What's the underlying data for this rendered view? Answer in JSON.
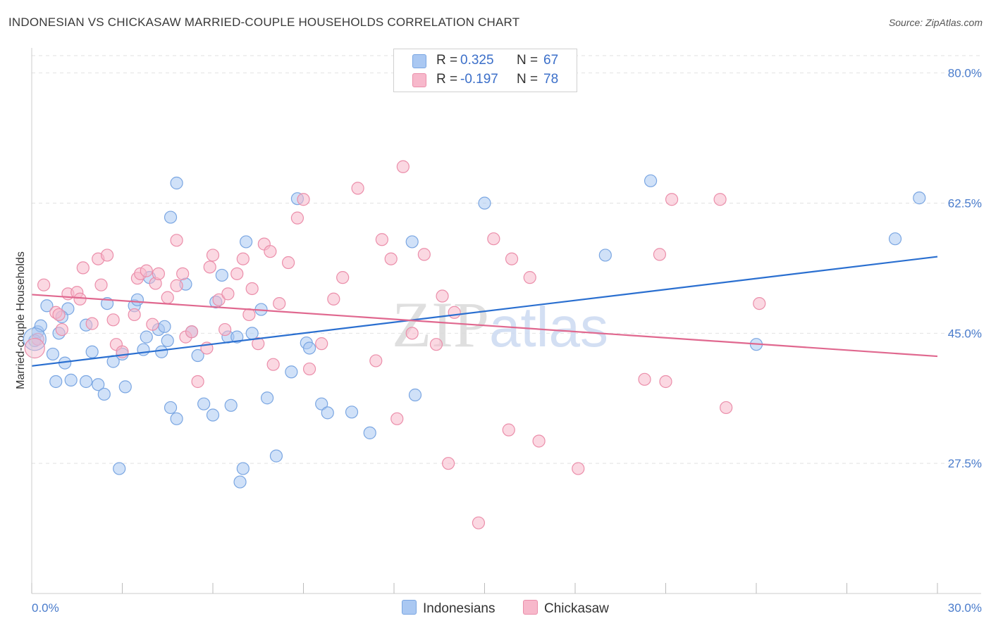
{
  "header": {
    "title": "INDONESIAN VS CHICKASAW MARRIED-COUPLE HOUSEHOLDS CORRELATION CHART",
    "source": "Source: ZipAtlas.com"
  },
  "watermark": {
    "part1": "ZIP",
    "part2": "atlas"
  },
  "legend": {
    "rows": [
      {
        "r_label": "R =",
        "r_value": "0.325",
        "n_label": "N =",
        "n_value": "67",
        "color": "#aac8f2"
      },
      {
        "r_label": "R =",
        "r_value": "-0.197",
        "n_label": "N =",
        "n_value": "78",
        "color": "#f7b8cb"
      }
    ],
    "bottom": [
      "Indonesians",
      "Chickasaw"
    ]
  },
  "colors": {
    "blue_fill": "#aac8f2",
    "blue_stroke": "#7aa6e2",
    "blue_line": "#2a6fd0",
    "pink_fill": "#f7b8cb",
    "pink_stroke": "#eb8eaa",
    "pink_line": "#e0688f",
    "grid": "#e2e2e2",
    "axis_text": "#4a7ccc"
  },
  "chart_data": {
    "type": "scatter",
    "title": "INDONESIAN VS CHICKASAW MARRIED-COUPLE HOUSEHOLDS CORRELATION CHART",
    "xlabel": "",
    "ylabel": "Married-couple Households",
    "xlim": [
      0,
      30
    ],
    "ylim": [
      10,
      83
    ],
    "x_tick_labels": [
      "0.0%",
      "30.0%"
    ],
    "y_ticks": [
      27.5,
      45.0,
      62.5,
      80.0
    ],
    "y_tick_labels": [
      "27.5%",
      "45.0%",
      "62.5%",
      "80.0%"
    ],
    "grid": true,
    "series": [
      {
        "name": "Indonesians",
        "points": [
          [
            0.2,
            45.2
          ],
          [
            0.5,
            48.7
          ],
          [
            1.2,
            48.3
          ],
          [
            0.8,
            38.5
          ],
          [
            1.3,
            38.7
          ],
          [
            1.8,
            38.5
          ],
          [
            2.2,
            38.1
          ],
          [
            2.4,
            36.8
          ],
          [
            1.0,
            47.2
          ],
          [
            1.1,
            41.0
          ],
          [
            0.7,
            42.2
          ],
          [
            0.9,
            45.0
          ],
          [
            1.8,
            46.1
          ],
          [
            2.0,
            42.5
          ],
          [
            2.5,
            49.0
          ],
          [
            2.7,
            41.2
          ],
          [
            3.0,
            42.2
          ],
          [
            3.1,
            37.8
          ],
          [
            3.4,
            48.7
          ],
          [
            3.5,
            49.5
          ],
          [
            3.7,
            42.8
          ],
          [
            3.8,
            44.5
          ],
          [
            3.9,
            52.5
          ],
          [
            4.2,
            45.5
          ],
          [
            4.4,
            45.9
          ],
          [
            4.5,
            44.0
          ],
          [
            4.3,
            42.5
          ],
          [
            4.8,
            33.5
          ],
          [
            4.6,
            35.0
          ],
          [
            2.9,
            26.8
          ],
          [
            5.1,
            51.6
          ],
          [
            4.6,
            60.6
          ],
          [
            4.8,
            65.2
          ],
          [
            5.3,
            45.2
          ],
          [
            5.5,
            42.0
          ],
          [
            5.7,
            35.5
          ],
          [
            6.0,
            34.0
          ],
          [
            6.1,
            49.2
          ],
          [
            6.6,
            35.3
          ],
          [
            6.3,
            52.8
          ],
          [
            6.5,
            44.5
          ],
          [
            6.8,
            44.5
          ],
          [
            7.1,
            57.3
          ],
          [
            7.0,
            26.8
          ],
          [
            6.9,
            25.0
          ],
          [
            7.3,
            45.0
          ],
          [
            7.6,
            48.2
          ],
          [
            7.8,
            36.3
          ],
          [
            8.1,
            28.5
          ],
          [
            8.6,
            39.8
          ],
          [
            8.8,
            63.1
          ],
          [
            9.1,
            43.7
          ],
          [
            9.2,
            43.0
          ],
          [
            9.6,
            35.5
          ],
          [
            9.8,
            34.3
          ],
          [
            10.6,
            34.4
          ],
          [
            11.2,
            31.6
          ],
          [
            12.7,
            36.7
          ],
          [
            12.6,
            57.3
          ],
          [
            15.0,
            62.5
          ],
          [
            19.0,
            55.5
          ],
          [
            20.5,
            65.5
          ],
          [
            24.0,
            43.5
          ],
          [
            28.6,
            57.7
          ],
          [
            29.4,
            63.2
          ],
          [
            0.1,
            44.0
          ],
          [
            0.3,
            46.0
          ]
        ]
      },
      {
        "name": "Chickasaw",
        "points": [
          [
            0.2,
            44.2
          ],
          [
            0.4,
            51.5
          ],
          [
            0.8,
            47.8
          ],
          [
            0.9,
            47.5
          ],
          [
            1.0,
            45.5
          ],
          [
            1.2,
            50.3
          ],
          [
            1.5,
            50.5
          ],
          [
            1.6,
            49.6
          ],
          [
            1.7,
            53.8
          ],
          [
            2.0,
            46.3
          ],
          [
            2.2,
            55.0
          ],
          [
            2.3,
            51.5
          ],
          [
            2.5,
            55.5
          ],
          [
            2.7,
            46.8
          ],
          [
            2.8,
            43.5
          ],
          [
            3.0,
            42.5
          ],
          [
            3.4,
            47.5
          ],
          [
            3.5,
            52.4
          ],
          [
            3.6,
            53.0
          ],
          [
            3.8,
            53.4
          ],
          [
            4.0,
            46.2
          ],
          [
            4.1,
            51.7
          ],
          [
            4.2,
            53.0
          ],
          [
            4.5,
            49.8
          ],
          [
            4.8,
            51.4
          ],
          [
            4.8,
            57.5
          ],
          [
            5.0,
            53.0
          ],
          [
            5.1,
            44.5
          ],
          [
            5.3,
            45.2
          ],
          [
            5.5,
            38.5
          ],
          [
            5.8,
            43.0
          ],
          [
            5.9,
            53.9
          ],
          [
            6.0,
            55.5
          ],
          [
            6.2,
            49.5
          ],
          [
            6.4,
            45.5
          ],
          [
            6.5,
            50.3
          ],
          [
            6.8,
            53.0
          ],
          [
            7.0,
            55.0
          ],
          [
            7.2,
            47.5
          ],
          [
            7.3,
            51.0
          ],
          [
            7.5,
            43.6
          ],
          [
            7.7,
            57.0
          ],
          [
            7.9,
            56.0
          ],
          [
            8.0,
            40.8
          ],
          [
            8.2,
            49.0
          ],
          [
            8.5,
            54.5
          ],
          [
            8.8,
            60.5
          ],
          [
            9.0,
            63.0
          ],
          [
            9.2,
            40.2
          ],
          [
            9.6,
            43.6
          ],
          [
            10.0,
            49.6
          ],
          [
            10.3,
            52.5
          ],
          [
            10.8,
            64.5
          ],
          [
            11.4,
            41.3
          ],
          [
            11.6,
            57.6
          ],
          [
            11.9,
            55.0
          ],
          [
            12.1,
            33.5
          ],
          [
            12.3,
            67.4
          ],
          [
            12.6,
            45.0
          ],
          [
            13.0,
            55.6
          ],
          [
            13.4,
            43.5
          ],
          [
            13.6,
            50.0
          ],
          [
            13.8,
            27.5
          ],
          [
            14.0,
            47.8
          ],
          [
            14.8,
            19.5
          ],
          [
            15.3,
            57.7
          ],
          [
            15.8,
            32.0
          ],
          [
            15.9,
            55.0
          ],
          [
            16.5,
            52.5
          ],
          [
            16.8,
            30.5
          ],
          [
            18.1,
            26.8
          ],
          [
            20.3,
            38.8
          ],
          [
            20.8,
            55.6
          ],
          [
            21.0,
            38.5
          ],
          [
            21.2,
            63.0
          ],
          [
            23.0,
            35.0
          ],
          [
            24.1,
            49.0
          ],
          [
            22.8,
            63.0
          ]
        ]
      }
    ],
    "trend_lines": [
      {
        "name": "Indonesians",
        "x": [
          0,
          30
        ],
        "y": [
          40.6,
          55.3
        ]
      },
      {
        "name": "Chickasaw",
        "x": [
          0,
          30
        ],
        "y": [
          50.2,
          41.9
        ]
      }
    ]
  }
}
